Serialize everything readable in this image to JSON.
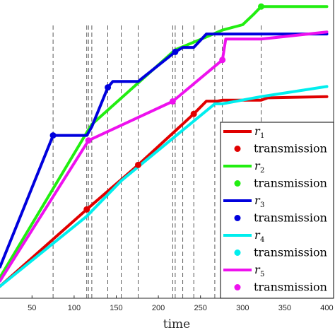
{
  "chart_data": {
    "type": "line",
    "xlabel": "time",
    "ylabel": "",
    "title": "",
    "xlim": [
      12,
      408
    ],
    "ylim": [
      0,
      1
    ],
    "xticks": [
      50,
      100,
      150,
      200,
      250,
      300,
      350,
      400
    ],
    "vlines": [
      75,
      115,
      117,
      121,
      140,
      156,
      176,
      217,
      220,
      229,
      242,
      267,
      276,
      322
    ],
    "legend": {
      "position": "lower-right"
    },
    "series": [
      {
        "name": "r1",
        "color": "#e00000",
        "x": [
          12,
          115,
          176,
          242,
          257,
          270,
          276,
          322,
          330,
          400
        ],
        "y": [
          0.04,
          0.298,
          0.447,
          0.618,
          0.661,
          0.661,
          0.664,
          0.664,
          0.672,
          0.676
        ],
        "transmissions": [
          [
            115,
            0.298
          ],
          [
            176,
            0.447
          ],
          [
            242,
            0.618
          ]
        ]
      },
      {
        "name": "r2",
        "color": "#22ee11",
        "x": [
          12,
          115,
          121,
          220,
          257,
          276,
          300,
          313,
          322,
          400
        ],
        "y": [
          0.07,
          0.556,
          0.583,
          0.833,
          0.876,
          0.899,
          0.917,
          0.952,
          0.978,
          0.978
        ]
      },
      {
        "name": "r3",
        "color": "#0000dd",
        "x": [
          12,
          75,
          115,
          121,
          140,
          146,
          176,
          220,
          229,
          242,
          257,
          400
        ],
        "y": [
          0.105,
          0.546,
          0.546,
          0.575,
          0.707,
          0.727,
          0.727,
          0.826,
          0.841,
          0.841,
          0.886,
          0.886
        ],
        "transmissions": [
          [
            75,
            0.546
          ],
          [
            140,
            0.707
          ],
          [
            220,
            0.826
          ]
        ]
      },
      {
        "name": "r4",
        "color": "#00eeee",
        "x": [
          12,
          115,
          156,
          267,
          276,
          322,
          400
        ],
        "y": [
          0.04,
          0.275,
          0.394,
          0.652,
          0.652,
          0.676,
          0.71
        ]
      },
      {
        "name": "r5",
        "color": "#ee11ee",
        "x": [
          12,
          117,
          217,
          276,
          280,
          322,
          400
        ],
        "y": [
          0.058,
          0.529,
          0.66,
          0.799,
          0.869,
          0.869,
          0.893
        ],
        "transmissions": [
          [
            117,
            0.529
          ],
          [
            217,
            0.66
          ],
          [
            276,
            0.799
          ]
        ]
      }
    ],
    "legend_entries": [
      {
        "kind": "line",
        "symbol": "r",
        "sub": "1",
        "color": "#e00000"
      },
      {
        "kind": "marker",
        "label": "transmission",
        "color": "#e00000"
      },
      {
        "kind": "line",
        "symbol": "r",
        "sub": "2",
        "color": "#22ee11"
      },
      {
        "kind": "marker",
        "label": "transmission",
        "color": "#22ee11"
      },
      {
        "kind": "line",
        "symbol": "r",
        "sub": "3",
        "color": "#0000dd"
      },
      {
        "kind": "marker",
        "label": "transmission",
        "color": "#0000dd"
      },
      {
        "kind": "line",
        "symbol": "r",
        "sub": "4",
        "color": "#00eeee"
      },
      {
        "kind": "marker",
        "label": "transmission",
        "color": "#00eeee"
      },
      {
        "kind": "line",
        "symbol": "r",
        "sub": "5",
        "color": "#ee11ee"
      },
      {
        "kind": "marker",
        "label": "transmission",
        "color": "#ee11ee"
      }
    ],
    "extra_markers": [
      {
        "series": "r2",
        "x": 322,
        "y": 0.978
      }
    ]
  }
}
